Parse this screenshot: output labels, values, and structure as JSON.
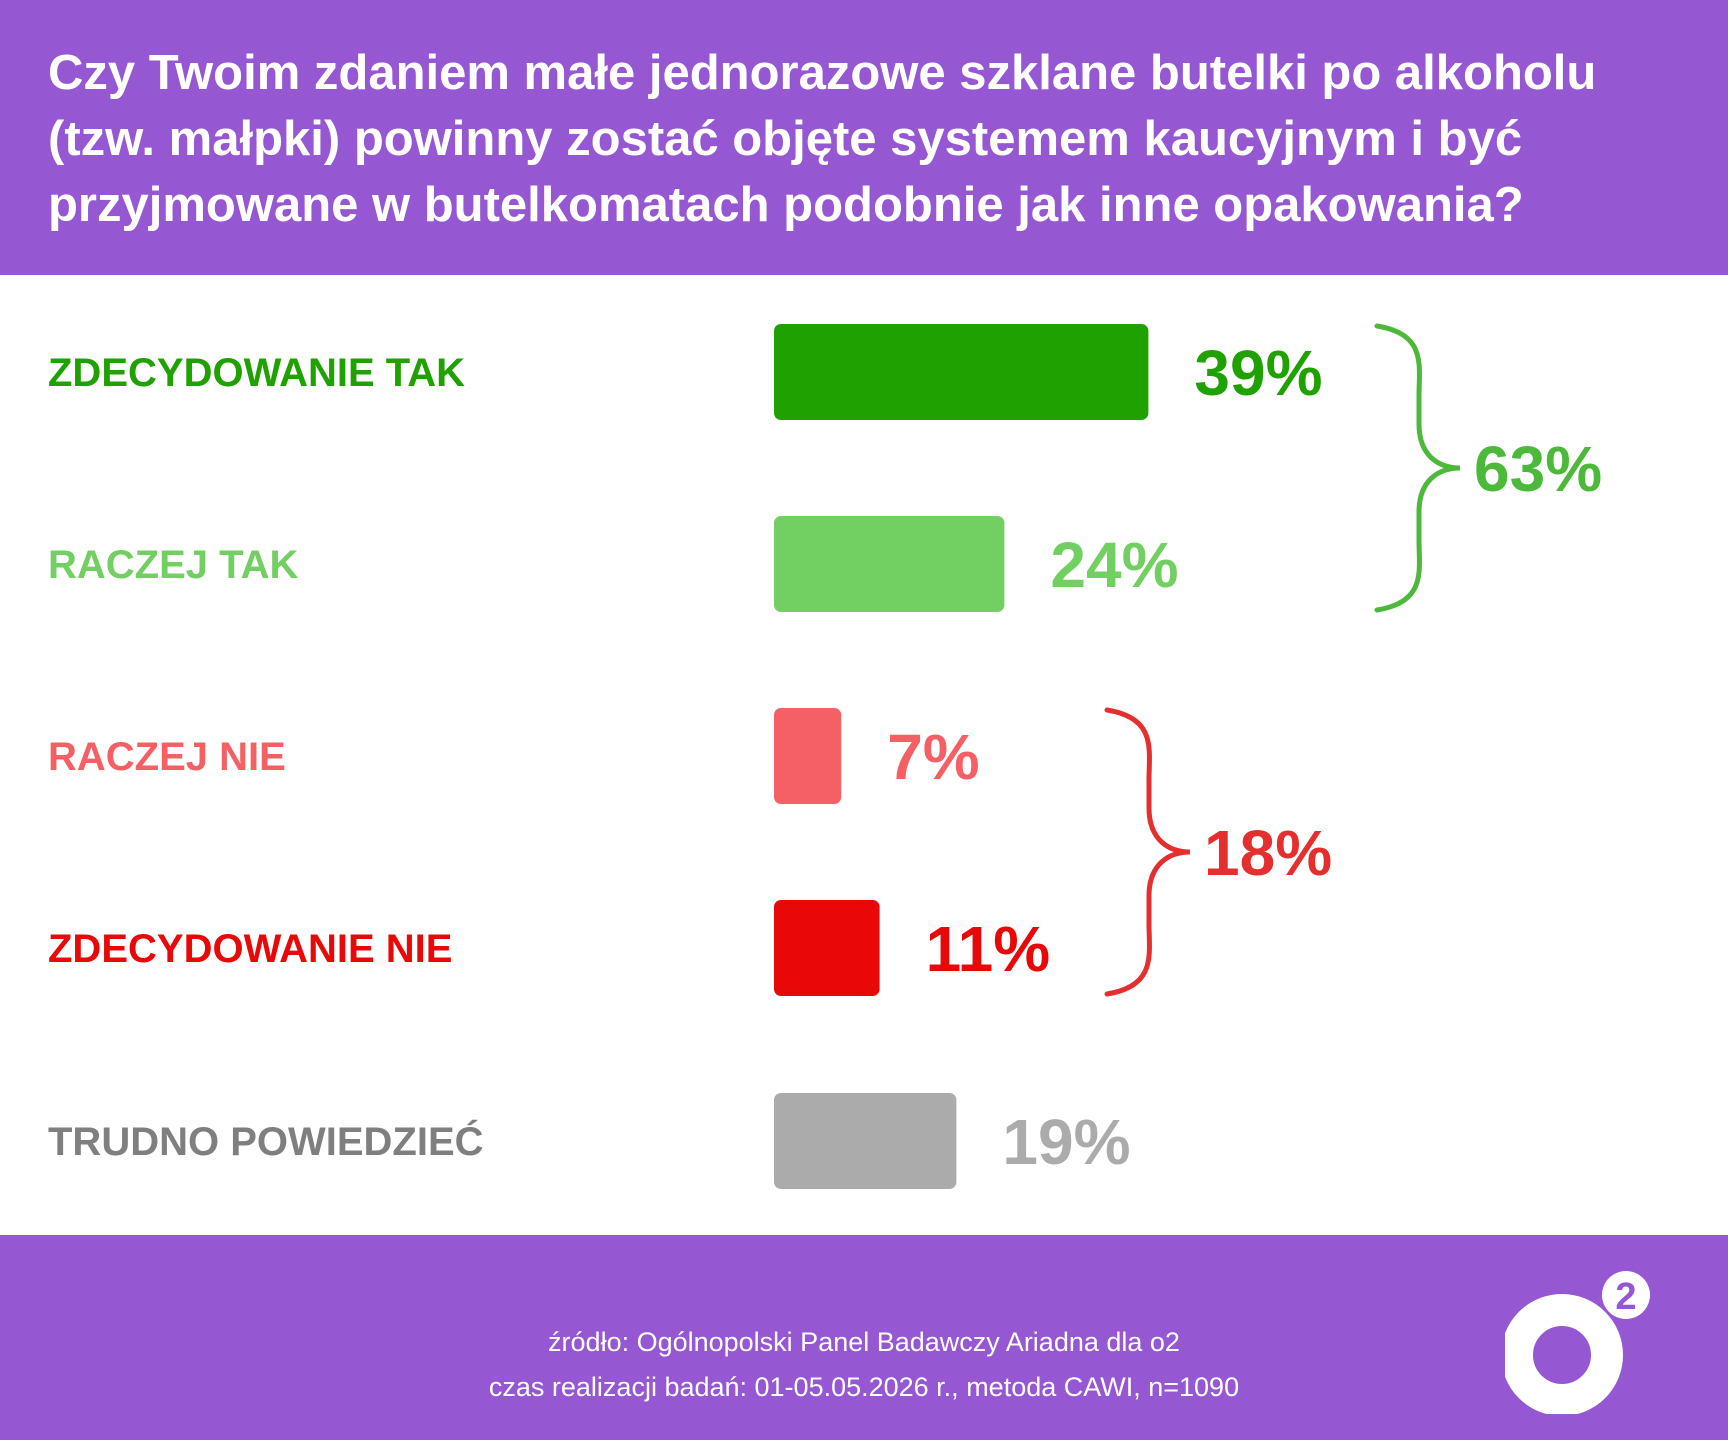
{
  "title": "Czy Twoim zdaniem małe jednorazowe szklane butelki po alkoholu (tzw. małpki) powinny zostać objęte systemem kaucyjnym i być przyjmowane w butelkomatach podobnie jak inne opakowania?",
  "chart_data": {
    "type": "bar",
    "orientation": "horizontal",
    "categories": [
      "ZDECYDOWANIE TAK",
      "RACZEJ TAK",
      "RACZEJ NIE",
      "ZDECYDOWANIE NIE",
      "TRUDNO POWIEDZIEĆ"
    ],
    "values": [
      39,
      24,
      7,
      11,
      19
    ],
    "value_labels": [
      "39%",
      "24%",
      "7%",
      "11%",
      "19%"
    ],
    "colors": [
      "#1fa100",
      "#72cf62",
      "#f46063",
      "#e80808",
      "#ababab"
    ],
    "label_colors": [
      "#1fa100",
      "#72cf62",
      "#f46063",
      "#e80808",
      "#7f7f7f"
    ],
    "value_label_colors": [
      "#1fa100",
      "#72cf62",
      "#f46063",
      "#e80808",
      "#ababab"
    ],
    "groups": [
      {
        "label": "63%",
        "value": 63,
        "color": "#4cb93a",
        "members": [
          0,
          1
        ]
      },
      {
        "label": "18%",
        "value": 18,
        "color": "#e52f2f",
        "members": [
          2,
          3
        ]
      }
    ],
    "unit": "%",
    "grid": false,
    "legend": "none"
  },
  "footer": {
    "source_line1": "źródło: Ogólnopolski Panel Badawczy Ariadna dla o2",
    "source_line2": "czas realizacji badań: 01-05.05.2026 r., metoda CAWI, n=1090"
  },
  "logo": {
    "text": "o2",
    "superscript": "2"
  }
}
